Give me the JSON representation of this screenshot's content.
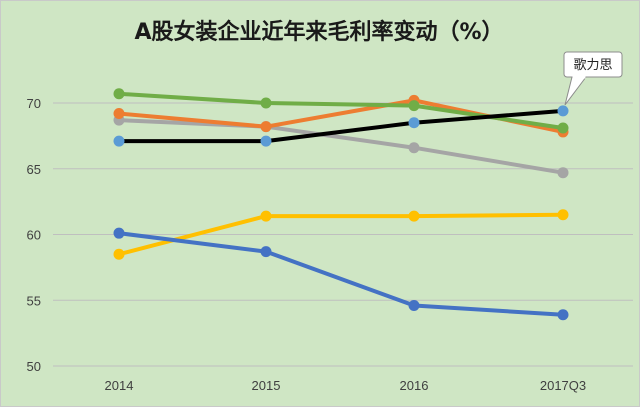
{
  "chart_data": {
    "type": "line",
    "title": "A股女装企业近年来毛利率变动（%）",
    "categories": [
      "2014",
      "2015",
      "2016",
      "2017Q3"
    ],
    "ylim": [
      50,
      72
    ],
    "yticks": [
      50,
      55,
      60,
      65,
      70
    ],
    "grid": true,
    "legend": "none",
    "series": [
      {
        "color": "#000000",
        "values": [
          67.1,
          67.1,
          68.5,
          69.4
        ]
      },
      {
        "color": "#70ad47",
        "values": [
          70.7,
          70.0,
          69.8,
          68.1
        ]
      },
      {
        "color": "#ed7d31",
        "values": [
          69.2,
          68.2,
          70.2,
          67.8
        ]
      },
      {
        "color": "#a5a5a5",
        "values": [
          68.7,
          68.2,
          66.6,
          64.7
        ]
      },
      {
        "color": "#ffc000",
        "values": [
          58.5,
          61.4,
          61.4,
          61.5
        ]
      },
      {
        "color": "#4472c4",
        "values": [
          60.1,
          58.7,
          54.6,
          53.9
        ]
      }
    ],
    "highlight_series": 0,
    "highlight_color": "#5b9bd5",
    "annotation": {
      "text": "歌力思",
      "target_category": "2017Q3",
      "target_value": 69.4
    }
  }
}
